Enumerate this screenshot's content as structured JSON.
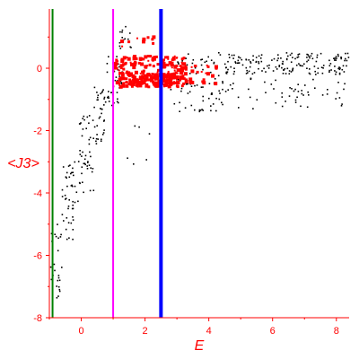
{
  "chart_data": {
    "type": "scatter",
    "title": "",
    "xlabel": "E",
    "ylabel": "<J3>",
    "xlim": [
      -1.0,
      8.4
    ],
    "ylim": [
      -8.0,
      1.9
    ],
    "x_ticks": [
      0,
      2,
      4,
      6,
      8
    ],
    "y_ticks": [
      0,
      -2,
      -4,
      -6,
      -8
    ],
    "grid": false,
    "legend": "none",
    "vertical_lines": [
      {
        "x": -0.9,
        "color": "#008000",
        "width": "thin"
      },
      {
        "x": 1.0,
        "color": "#ff00ff",
        "width": "thin"
      },
      {
        "x": 2.5,
        "color": "#0000ff",
        "width": "thick"
      }
    ],
    "series": [
      {
        "color": "#000000",
        "marker": "small-dot",
        "regions": [
          {
            "x_range": [
              -1.0,
              -0.6
            ],
            "y_range": [
              -7.6,
              -5.0
            ],
            "count": 25
          },
          {
            "x_range": [
              -0.6,
              -0.1
            ],
            "y_range": [
              -5.5,
              -3.0
            ],
            "count": 45
          },
          {
            "x_range": [
              -0.1,
              0.4
            ],
            "y_range": [
              -4.0,
              -1.5
            ],
            "count": 45
          },
          {
            "x_range": [
              0.4,
              0.8
            ],
            "y_range": [
              -2.5,
              -0.6
            ],
            "count": 35
          },
          {
            "x_range": [
              0.8,
              1.3
            ],
            "y_range": [
              -1.2,
              0.4
            ],
            "count": 35
          },
          {
            "x_range": [
              1.2,
              1.6
            ],
            "y_range": [
              0.6,
              1.4
            ],
            "count": 14
          },
          {
            "x_range": [
              1.4,
              2.2
            ],
            "y_range": [
              -3.2,
              -1.8
            ],
            "count": 6
          },
          {
            "x_range": [
              2.8,
              4.5
            ],
            "y_range": [
              -1.4,
              0.5
            ],
            "count": 80
          },
          {
            "x_range": [
              4.5,
              8.4
            ],
            "y_range": [
              -0.2,
              0.5
            ],
            "count": 170
          },
          {
            "x_range": [
              4.5,
              8.4
            ],
            "y_range": [
              -1.3,
              -0.3
            ],
            "count": 55
          }
        ]
      },
      {
        "color": "#ff0000",
        "marker": "large-dot",
        "regions": [
          {
            "x_range": [
              1.0,
              3.3
            ],
            "y_range": [
              -0.6,
              0.4
            ],
            "count": 240
          },
          {
            "x_range": [
              1.5,
              3.0
            ],
            "y_range": [
              -0.55,
              -0.2
            ],
            "count": 120
          },
          {
            "x_range": [
              1.2,
              2.6
            ],
            "y_range": [
              0.7,
              1.0
            ],
            "count": 10
          },
          {
            "x_range": [
              3.0,
              4.3
            ],
            "y_range": [
              -0.5,
              0.1
            ],
            "count": 30
          }
        ]
      }
    ]
  }
}
